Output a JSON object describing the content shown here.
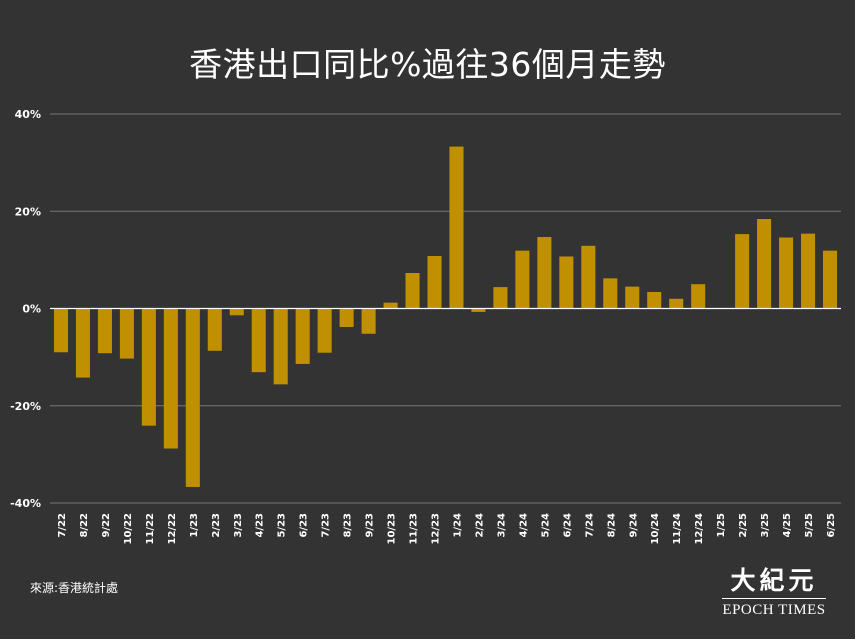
{
  "chart_data": {
    "type": "bar",
    "title": "香港出口同比%過往36個月走勢",
    "xlabel": "",
    "ylabel": "",
    "ylim": [
      -40,
      40
    ],
    "yticks": [
      40,
      20,
      0,
      -20,
      -40
    ],
    "ytick_labels": [
      "40%",
      "20%",
      "0%",
      "-20%",
      "-40%"
    ],
    "grid": true,
    "bar_color": "#C09000",
    "grid_color": "#777777",
    "zero_line_color": "#ffffff",
    "categories": [
      "7/22",
      "8/22",
      "9/22",
      "10/22",
      "11/22",
      "12/22",
      "1/23",
      "2/23",
      "3/23",
      "4/23",
      "5/23",
      "6/23",
      "7/23",
      "8/23",
      "9/23",
      "10/23",
      "11/23",
      "12/23",
      "1/24",
      "2/24",
      "3/24",
      "4/24",
      "5/24",
      "6/24",
      "7/24",
      "8/24",
      "9/24",
      "10/24",
      "11/24",
      "12/24",
      "1/25",
      "2/25",
      "3/25",
      "4/25",
      "5/25",
      "6/25"
    ],
    "values": [
      -9.0,
      -14.2,
      -9.2,
      -10.3,
      -24.1,
      -28.8,
      -36.7,
      -8.7,
      -1.4,
      -13.1,
      -15.6,
      -11.4,
      -9.1,
      -3.8,
      -5.2,
      1.2,
      7.3,
      10.8,
      33.3,
      -0.7,
      4.4,
      11.9,
      14.7,
      10.7,
      12.9,
      6.2,
      4.5,
      3.4,
      2.0,
      5.0,
      0.0,
      15.3,
      18.4,
      14.6,
      15.4,
      11.9
    ]
  },
  "source": "來源:香港統計處",
  "logo": {
    "cn": "大紀元",
    "en": "EPOCH TIMES"
  }
}
